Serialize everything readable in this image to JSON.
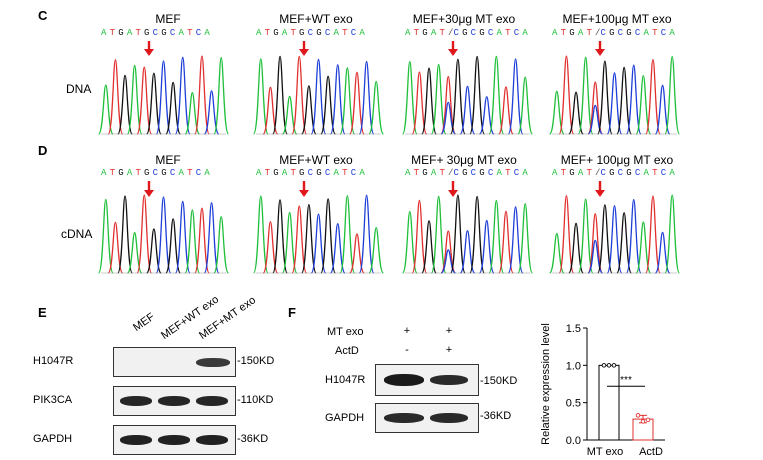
{
  "panels": {
    "C": {
      "letter": "C",
      "row_label": "DNA"
    },
    "D": {
      "letter": "D",
      "row_label": "cDNA"
    },
    "E": {
      "letter": "E"
    },
    "F": {
      "letter": "F"
    }
  },
  "traces": {
    "dna_titles": [
      "MEF",
      "MEF+WT exo",
      "MEF+30μg MT exo",
      "MEF+100μg MT exo"
    ],
    "cdna_titles": [
      "MEF",
      "MEF+WT exo",
      "MEF+ 30μg MT exo",
      "MEF+ 100μg MT exo"
    ],
    "sequences": [
      "ATGATGCGCATCA",
      "ATGATGCGCATCA",
      "ATGAT/CGCGCATCA",
      "ATGAT/CGCGCATCA"
    ],
    "base_colors": {
      "A": "#1fbf3a",
      "T": "#e0302f",
      "G": "#111111",
      "C": "#1e3fd8"
    },
    "arrow_color": "#e0181b"
  },
  "blot_E": {
    "lanes": [
      "MEF",
      "MEF+WT exo",
      "MEF+MT exo"
    ],
    "rows": [
      {
        "label": "H1047R",
        "kd": "-150KD"
      },
      {
        "label": "PIK3CA",
        "kd": "-110KD"
      },
      {
        "label": "GAPDH",
        "kd": "-36KD"
      }
    ]
  },
  "blot_F": {
    "conditions": [
      {
        "label": "MT exo",
        "values": [
          "+",
          "+"
        ]
      },
      {
        "label": "ActD",
        "values": [
          "-",
          "+"
        ]
      }
    ],
    "rows": [
      {
        "label": "H1047R",
        "kd": "-150KD"
      },
      {
        "label": "GAPDH",
        "kd": "-36KD"
      }
    ]
  },
  "chart_data": {
    "type": "bar",
    "categories": [
      "MT exo",
      "ActD"
    ],
    "values": [
      1.0,
      0.28
    ],
    "points": [
      [
        1.0,
        1.0,
        1.0
      ],
      [
        0.33,
        0.25,
        0.27
      ]
    ],
    "error": [
      0.0,
      0.05
    ],
    "bar_colors": [
      "#000000",
      "#e0302f"
    ],
    "ylabel": "Relative expression level",
    "ylim": [
      0,
      1.5
    ],
    "yticks": [
      0.0,
      0.5,
      1.0,
      1.5
    ],
    "ytick_labels": [
      "0.0",
      "0.5",
      "1.0",
      "1.5"
    ],
    "significance": "***"
  }
}
